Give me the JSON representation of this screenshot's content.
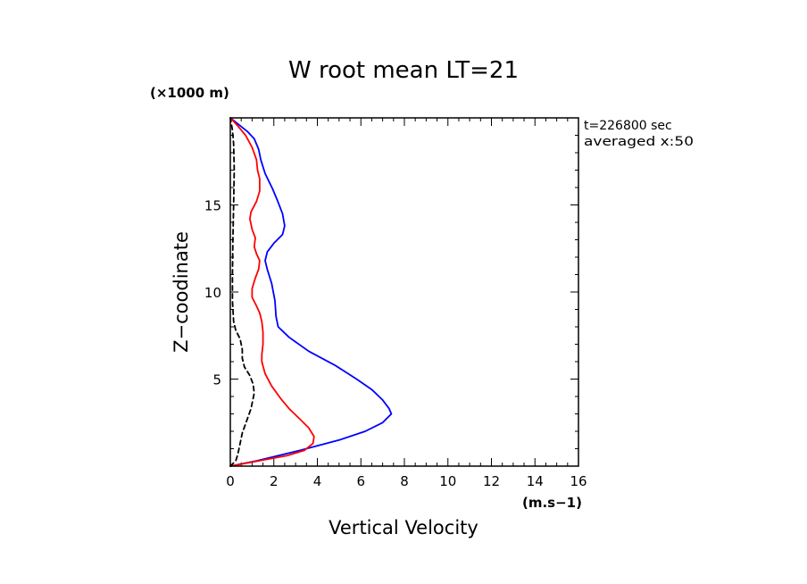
{
  "chart_data": {
    "type": "line",
    "title": "W root mean LT=21",
    "xlabel": "Vertical Velocity",
    "ylabel": "Z−coodinate",
    "x_unit": "(m.s−1)",
    "y_unit": "(×1000 m)",
    "xlim": [
      0,
      16
    ],
    "ylim": [
      0,
      20
    ],
    "x_ticks": [
      0,
      2,
      4,
      6,
      8,
      10,
      12,
      14,
      16
    ],
    "y_ticks": [
      5,
      10,
      15
    ],
    "grid": false,
    "annotations": [
      "t=226800 sec",
      "averaged  x:50"
    ],
    "series": [
      {
        "color": "#0000ff",
        "dash": "solid",
        "points": [
          [
            0,
            0
          ],
          [
            1.2,
            0.3
          ],
          [
            3.2,
            0.9
          ],
          [
            5.0,
            1.5
          ],
          [
            6.2,
            2.0
          ],
          [
            7.0,
            2.5
          ],
          [
            7.4,
            3.0
          ],
          [
            7.3,
            3.3
          ],
          [
            7.0,
            3.8
          ],
          [
            6.5,
            4.4
          ],
          [
            5.8,
            5.0
          ],
          [
            4.8,
            5.8
          ],
          [
            3.6,
            6.6
          ],
          [
            2.7,
            7.4
          ],
          [
            2.2,
            8.0
          ],
          [
            2.1,
            8.6
          ],
          [
            2.05,
            9.5
          ],
          [
            1.9,
            10.5
          ],
          [
            1.7,
            11.3
          ],
          [
            1.6,
            11.8
          ],
          [
            1.7,
            12.3
          ],
          [
            2.0,
            12.8
          ],
          [
            2.4,
            13.3
          ],
          [
            2.5,
            13.8
          ],
          [
            2.4,
            14.5
          ],
          [
            2.15,
            15.3
          ],
          [
            1.95,
            15.9
          ],
          [
            1.6,
            16.8
          ],
          [
            1.4,
            17.6
          ],
          [
            1.3,
            18.2
          ],
          [
            1.1,
            18.8
          ],
          [
            0.8,
            19.2
          ],
          [
            0.4,
            19.6
          ],
          [
            0,
            20
          ]
        ]
      },
      {
        "color": "#ff0000",
        "dash": "solid",
        "points": [
          [
            0,
            0
          ],
          [
            1.3,
            0.3
          ],
          [
            2.6,
            0.6
          ],
          [
            3.4,
            0.9
          ],
          [
            3.8,
            1.3
          ],
          [
            3.85,
            1.7
          ],
          [
            3.6,
            2.2
          ],
          [
            3.2,
            2.7
          ],
          [
            2.7,
            3.3
          ],
          [
            2.3,
            3.9
          ],
          [
            1.9,
            4.6
          ],
          [
            1.6,
            5.3
          ],
          [
            1.45,
            6.0
          ],
          [
            1.45,
            6.4
          ],
          [
            1.5,
            7.0
          ],
          [
            1.5,
            7.7
          ],
          [
            1.45,
            8.3
          ],
          [
            1.35,
            8.8
          ],
          [
            1.2,
            9.2
          ],
          [
            1.0,
            9.7
          ],
          [
            1.0,
            10.2
          ],
          [
            1.15,
            10.8
          ],
          [
            1.3,
            11.3
          ],
          [
            1.35,
            11.8
          ],
          [
            1.2,
            12.2
          ],
          [
            1.1,
            12.6
          ],
          [
            1.15,
            13.1
          ],
          [
            1.0,
            13.6
          ],
          [
            0.9,
            14.2
          ],
          [
            0.95,
            14.6
          ],
          [
            1.2,
            15.2
          ],
          [
            1.35,
            15.8
          ],
          [
            1.35,
            16.5
          ],
          [
            1.25,
            17.0
          ],
          [
            1.2,
            17.6
          ],
          [
            1.0,
            18.3
          ],
          [
            0.7,
            19.0
          ],
          [
            0.3,
            19.6
          ],
          [
            0,
            20
          ]
        ]
      },
      {
        "color": "#000000",
        "dash": "dashed",
        "points": [
          [
            0,
            0
          ],
          [
            0.25,
            0.3
          ],
          [
            0.35,
            0.7
          ],
          [
            0.45,
            1.3
          ],
          [
            0.55,
            1.9
          ],
          [
            0.75,
            2.6
          ],
          [
            0.95,
            3.3
          ],
          [
            1.1,
            4.2
          ],
          [
            1.05,
            4.7
          ],
          [
            0.9,
            5.2
          ],
          [
            0.65,
            5.7
          ],
          [
            0.55,
            6.2
          ],
          [
            0.55,
            6.7
          ],
          [
            0.45,
            7.3
          ],
          [
            0.25,
            7.8
          ],
          [
            0.15,
            8.3
          ],
          [
            0.1,
            9.5
          ],
          [
            0.1,
            11
          ],
          [
            0.12,
            13
          ],
          [
            0.15,
            15
          ],
          [
            0.18,
            17
          ],
          [
            0.15,
            18.5
          ],
          [
            0.1,
            19.3
          ],
          [
            0,
            20
          ]
        ]
      }
    ]
  }
}
